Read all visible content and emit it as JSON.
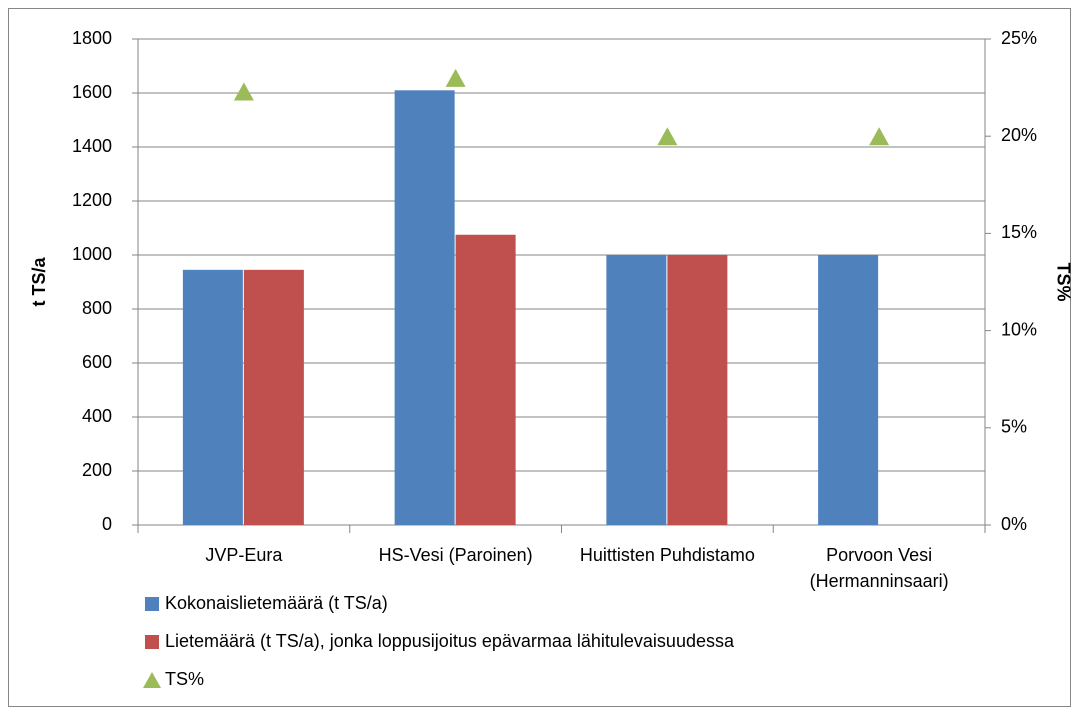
{
  "chart_data": {
    "type": "bar",
    "y_label": "t TS/a",
    "y2_label": "TS%",
    "categories": [
      "JVP-Eura",
      "HS-Vesi (Paroinen)",
      "Huittisten Puhdistamo",
      "Porvoon Vesi (Hermanninsaari)"
    ],
    "series": [
      {
        "name": "Kokonaislietemäärä (t TS/a)",
        "color": "#4f81bd",
        "type": "bar",
        "values": [
          945,
          1610,
          1000,
          1000
        ]
      },
      {
        "name": "Lietemäärä (t TS/a), jonka loppusijoitus epävarmaa lähitulevaisuudessa",
        "color": "#c0504d",
        "type": "bar",
        "values": [
          945,
          1075,
          1000,
          null
        ]
      },
      {
        "name": "TS%",
        "color": "#9bbb59",
        "type": "marker",
        "axis": "y2",
        "values": [
          22.3,
          23,
          20,
          20
        ]
      }
    ],
    "ylim": [
      0,
      1800
    ],
    "yticks": [
      0,
      200,
      400,
      600,
      800,
      1000,
      1200,
      1400,
      1600,
      1800
    ],
    "y2lim": [
      0,
      25
    ],
    "y2ticks": [
      {
        "value": 0,
        "label": "0%"
      },
      {
        "value": 5,
        "label": "5%"
      },
      {
        "value": 10,
        "label": "10%"
      },
      {
        "value": 15,
        "label": "15%"
      },
      {
        "value": 20,
        "label": "20%"
      },
      {
        "value": 25,
        "label": "25%"
      }
    ],
    "grid": true,
    "legend": "bottom"
  }
}
